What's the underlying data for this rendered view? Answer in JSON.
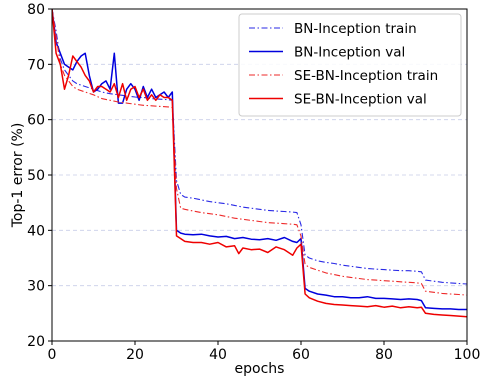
{
  "chart_data": {
    "type": "line",
    "title": "",
    "xlabel": "epochs",
    "ylabel": "Top-1 error (%)",
    "xlim": [
      0,
      100
    ],
    "ylim": [
      20,
      80
    ],
    "xticks": [
      0,
      20,
      40,
      60,
      80,
      100
    ],
    "yticks": [
      20,
      30,
      40,
      50,
      60,
      70,
      80
    ],
    "grid": "horizontal dashed",
    "legend_position": "top-right",
    "series": [
      {
        "name": "BN-Inception train",
        "color": "#2a2ae6",
        "style": "dashdot",
        "x": [
          0,
          1,
          2,
          3,
          4,
          5,
          6,
          8,
          10,
          12,
          14,
          16,
          18,
          20,
          22,
          24,
          26,
          28,
          29,
          30,
          31,
          32,
          34,
          36,
          38,
          40,
          42,
          44,
          46,
          48,
          50,
          52,
          54,
          56,
          58,
          59,
          60,
          61,
          62,
          64,
          66,
          68,
          70,
          72,
          74,
          76,
          78,
          80,
          82,
          84,
          86,
          88,
          89,
          90,
          92,
          94,
          96,
          98,
          100
        ],
        "y": [
          80,
          76,
          71,
          69,
          68,
          67,
          66.5,
          66,
          65.5,
          65,
          64.7,
          64.5,
          64.3,
          64.1,
          64.0,
          63.8,
          63.7,
          63.6,
          63.5,
          49,
          46.5,
          46,
          45.8,
          45.5,
          45.2,
          45.0,
          44.8,
          44.5,
          44.2,
          44.0,
          43.8,
          43.6,
          43.5,
          43.4,
          43.3,
          43.2,
          41,
          35.5,
          35.0,
          34.5,
          34.2,
          34.0,
          33.7,
          33.5,
          33.3,
          33.1,
          33.0,
          32.9,
          32.8,
          32.7,
          32.7,
          32.6,
          32.5,
          31,
          30.8,
          30.6,
          30.5,
          30.4,
          30.3
        ]
      },
      {
        "name": "BN-Inception val",
        "color": "#0000dd",
        "style": "solid",
        "x": [
          0,
          1,
          2,
          3,
          4,
          5,
          6,
          7,
          8,
          9,
          10,
          11,
          12,
          13,
          14,
          15,
          16,
          17,
          18,
          19,
          20,
          21,
          22,
          23,
          24,
          25,
          26,
          27,
          28,
          29,
          30,
          31,
          32,
          34,
          36,
          38,
          40,
          42,
          44,
          46,
          48,
          50,
          52,
          54,
          56,
          58,
          59,
          60,
          61,
          62,
          64,
          66,
          68,
          70,
          72,
          74,
          76,
          78,
          80,
          82,
          84,
          86,
          88,
          89,
          90,
          92,
          94,
          96,
          98,
          100
        ],
        "y": [
          80,
          74,
          72,
          70,
          69.5,
          69,
          70.5,
          71.5,
          72,
          68,
          65,
          65.5,
          66.5,
          67,
          65.5,
          72,
          63,
          63,
          65.5,
          66.5,
          65.5,
          63.5,
          66,
          64,
          65.5,
          64,
          64.5,
          65,
          64,
          65,
          40,
          39.5,
          39.3,
          39.2,
          39.3,
          39.0,
          38.8,
          38.9,
          38.5,
          38.7,
          38.4,
          38.3,
          38.5,
          38.2,
          38.7,
          38.0,
          37.8,
          38.5,
          29.5,
          29.0,
          28.5,
          28.3,
          28.0,
          28.0,
          27.8,
          27.8,
          28.0,
          27.7,
          27.7,
          27.6,
          27.5,
          27.6,
          27.5,
          27.3,
          26.0,
          25.9,
          25.8,
          25.8,
          25.7,
          25.7
        ]
      },
      {
        "name": "SE-BN-Inception train",
        "color": "#ee2a2a",
        "style": "dashdot",
        "x": [
          0,
          1,
          2,
          3,
          4,
          5,
          6,
          8,
          10,
          12,
          14,
          16,
          18,
          20,
          22,
          24,
          26,
          28,
          29,
          30,
          31,
          32,
          34,
          36,
          38,
          40,
          42,
          44,
          46,
          48,
          50,
          52,
          54,
          56,
          58,
          59,
          60,
          61,
          62,
          64,
          66,
          68,
          70,
          72,
          74,
          76,
          78,
          80,
          82,
          84,
          86,
          88,
          89,
          90,
          92,
          94,
          96,
          98,
          100
        ],
        "y": [
          80,
          75,
          70,
          68,
          67,
          66,
          65.5,
          65,
          64.5,
          63.8,
          63.5,
          63.2,
          63.0,
          62.8,
          62.6,
          62.5,
          62.4,
          62.3,
          62.2,
          47.5,
          44.0,
          43.8,
          43.5,
          43.2,
          43.0,
          42.8,
          42.5,
          42.2,
          42.0,
          41.8,
          41.6,
          41.4,
          41.3,
          41.2,
          41.1,
          41.0,
          39,
          33.8,
          33.3,
          32.8,
          32.3,
          32.0,
          31.7,
          31.5,
          31.3,
          31.1,
          31.0,
          30.9,
          30.8,
          30.7,
          30.6,
          30.5,
          30.4,
          29.0,
          28.8,
          28.6,
          28.5,
          28.4,
          28.3
        ]
      },
      {
        "name": "SE-BN-Inception val",
        "color": "#ee0000",
        "style": "solid",
        "x": [
          0,
          1,
          2,
          3,
          4,
          5,
          6,
          7,
          8,
          9,
          10,
          11,
          12,
          13,
          14,
          15,
          16,
          17,
          18,
          19,
          20,
          21,
          22,
          23,
          24,
          25,
          26,
          27,
          28,
          29,
          30,
          31,
          32,
          34,
          36,
          38,
          40,
          42,
          44,
          45,
          46,
          48,
          50,
          52,
          54,
          56,
          58,
          59,
          60,
          61,
          62,
          64,
          66,
          68,
          70,
          72,
          74,
          76,
          78,
          80,
          82,
          84,
          86,
          88,
          89,
          90,
          92,
          94,
          96,
          98,
          100
        ],
        "y": [
          80,
          72,
          70,
          65.5,
          68,
          71.5,
          70.5,
          69.5,
          68,
          67,
          65,
          66,
          66,
          65.5,
          65,
          66.5,
          64,
          66.5,
          63.5,
          65.5,
          66,
          64,
          65.5,
          63.5,
          64.5,
          63.5,
          64.5,
          64,
          64,
          63.5,
          39,
          38.5,
          38.0,
          37.8,
          37.8,
          37.5,
          37.8,
          37.0,
          37.2,
          35.8,
          36.8,
          36.5,
          36.6,
          36.0,
          37.0,
          36.5,
          35.5,
          36.8,
          37.5,
          28.5,
          27.8,
          27.2,
          26.8,
          26.6,
          26.5,
          26.4,
          26.3,
          26.2,
          26.4,
          26.1,
          26.3,
          26.0,
          26.2,
          26.0,
          26.1,
          25.0,
          24.8,
          24.7,
          24.6,
          24.5,
          24.4
        ]
      }
    ]
  }
}
